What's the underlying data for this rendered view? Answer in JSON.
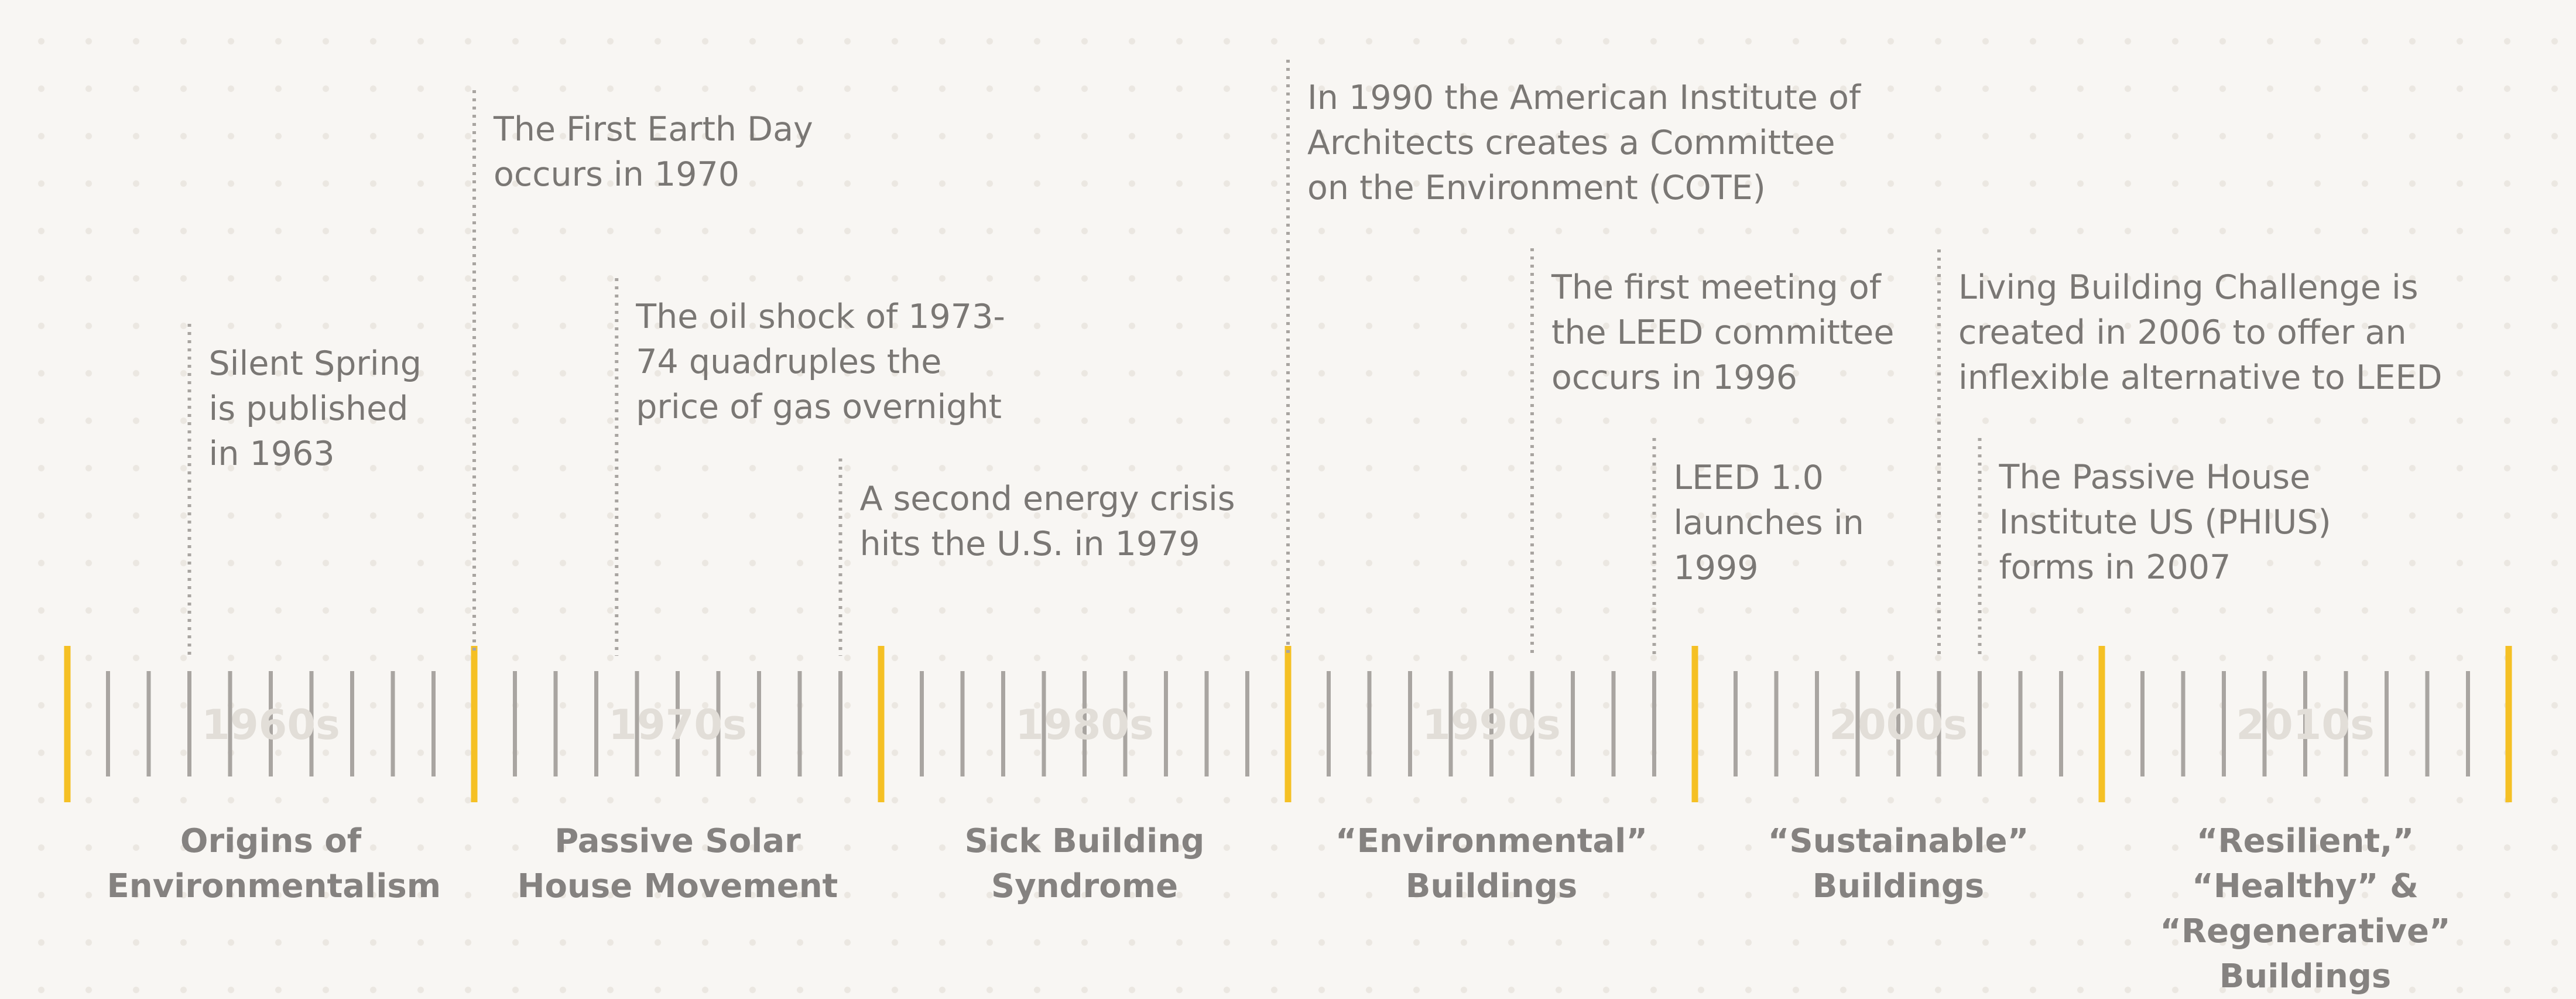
{
  "decades": [
    "1960s",
    "1970s",
    "1980s",
    "1990s",
    "2000s",
    "2010s"
  ],
  "eras": [
    [
      "Origins of",
      "Environmentalism"
    ],
    [
      "Passive Solar",
      "House Movement"
    ],
    [
      "Sick Building",
      "Syndrome"
    ],
    [
      "“Environmental”",
      "Buildings"
    ],
    [
      "“Sustainable”",
      "Buildings"
    ],
    [
      "“Resilient,” “Healthy” &",
      "“Regenerative”",
      "Buildings"
    ]
  ],
  "events": [
    {
      "year": 1963,
      "lines": [
        "Silent Spring",
        "is published",
        "in 1963"
      ]
    },
    {
      "year": 1970,
      "lines": [
        "The First Earth Day",
        "occurs in 1970"
      ]
    },
    {
      "year": 1973.5,
      "lines": [
        "The oil shock of 1973-",
        "74 quadruples the",
        "price of gas overnight"
      ]
    },
    {
      "year": 1979,
      "lines": [
        "A second energy crisis",
        "hits the U.S. in 1979"
      ]
    },
    {
      "year": 1990,
      "lines": [
        "In 1990 the American Institute of",
        "Architects creates a Committee",
        "on the Environment (COTE)"
      ]
    },
    {
      "year": 1996,
      "lines": [
        "The first meeting of",
        "the LEED committee",
        "occurs in 1996"
      ]
    },
    {
      "year": 1999,
      "lines": [
        "LEED 1.0",
        "launches in",
        "1999"
      ]
    },
    {
      "year": 2006,
      "lines": [
        "Living Building Challenge is",
        "created in 2006 to offer an",
        "inflexible alternative to LEED"
      ]
    },
    {
      "year": 2007,
      "lines": [
        "The Passive House",
        "Institute US (PHIUS)",
        "forms in 2007"
      ]
    }
  ],
  "colors": {
    "decade_marker": "#f5c024",
    "tick": "#a9a5a1",
    "connector": "#a9a5a1",
    "event_text": "#7a7774",
    "era_text": "#858280",
    "decade_text": "#e2ded8",
    "background": "#f8f6f3"
  }
}
